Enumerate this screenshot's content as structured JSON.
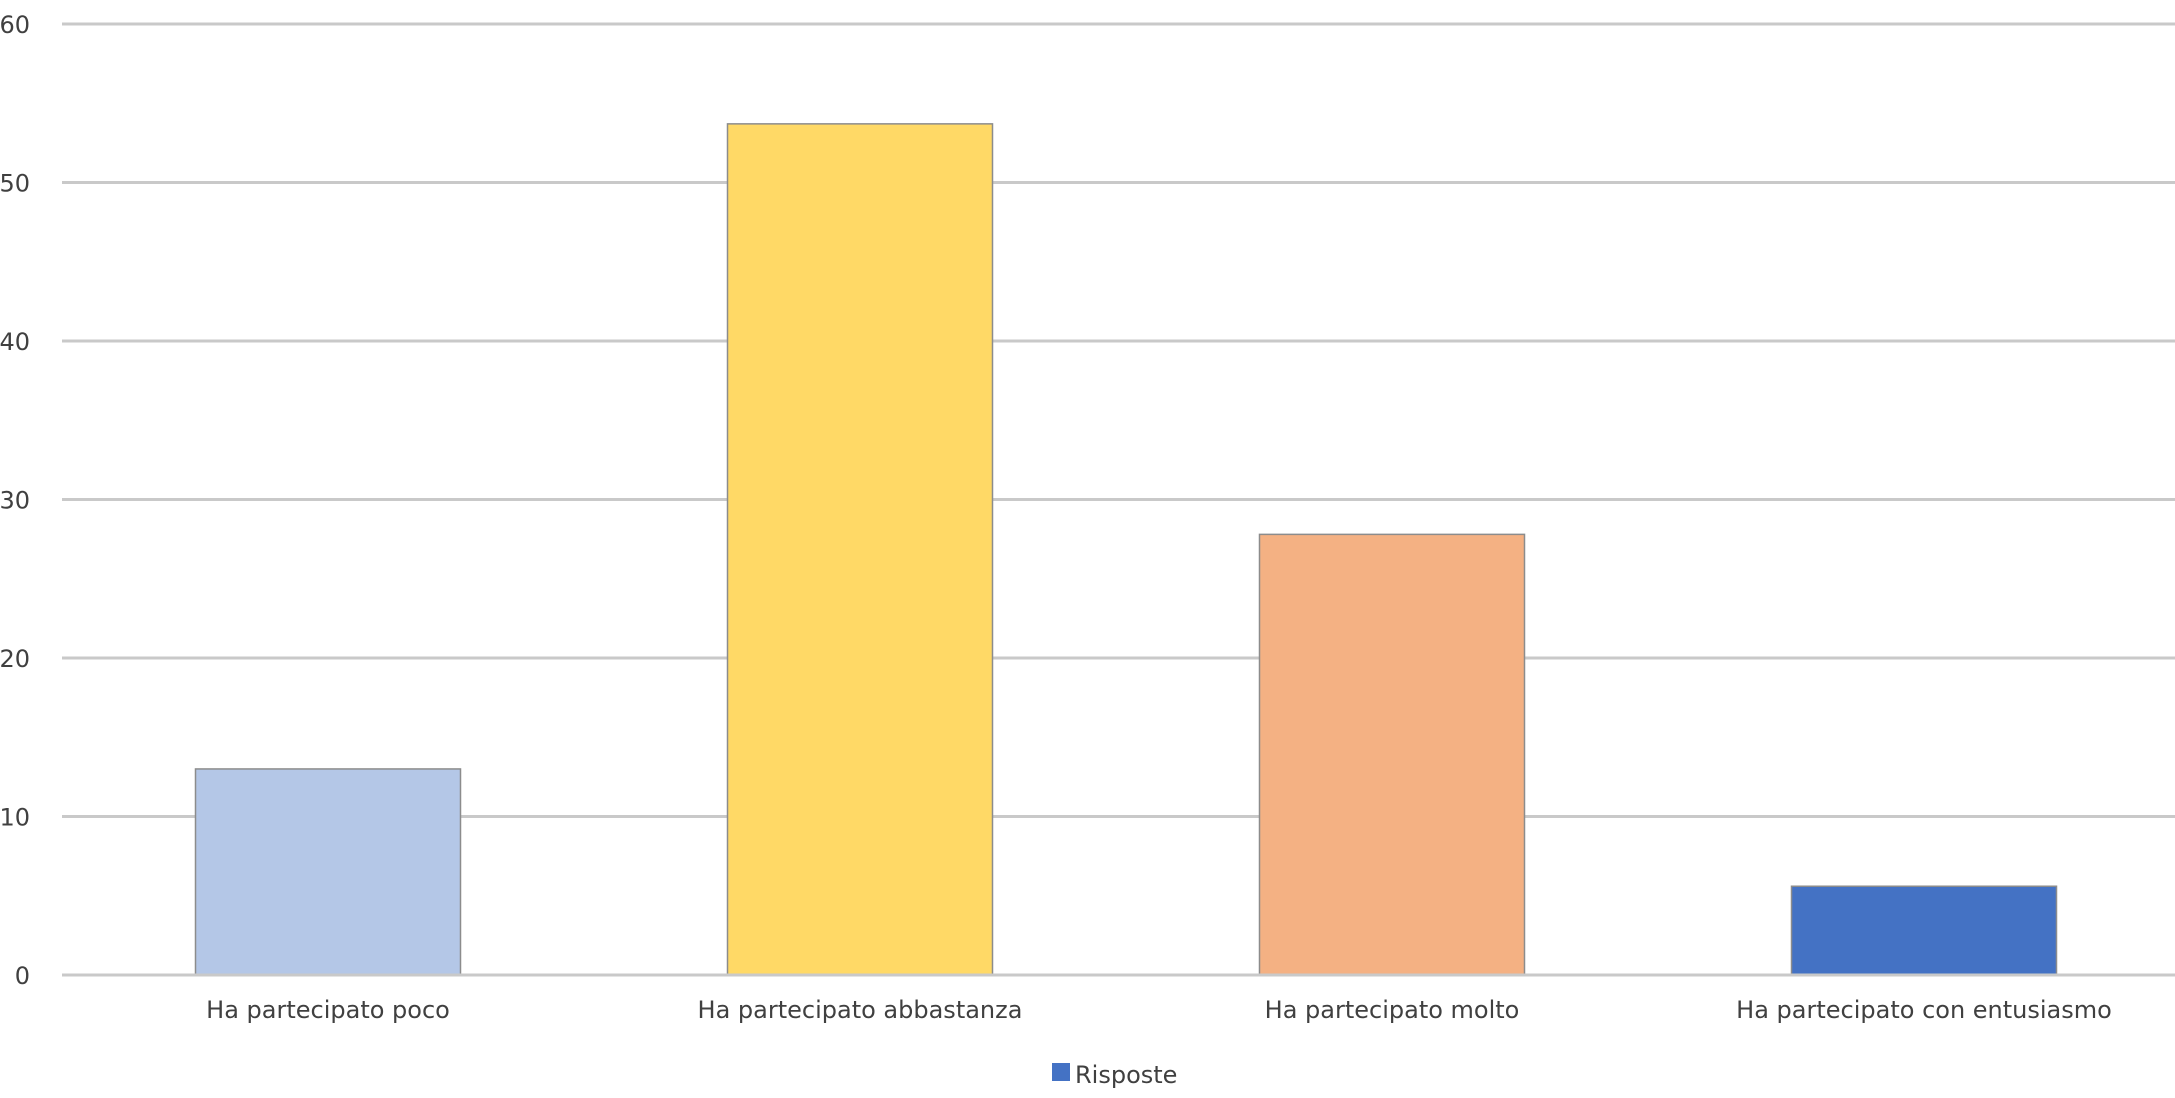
{
  "chart_data": {
    "type": "bar",
    "title": "",
    "xlabel": "",
    "ylabel": "",
    "categories": [
      "Ha partecipato poco",
      "Ha partecipato abbastanza",
      "Ha partecipato molto",
      "Ha partecipato con entusiasmo"
    ],
    "series": [
      {
        "name": "Risposte",
        "values": [
          13,
          53.7,
          27.8,
          5.6
        ],
        "colors": [
          "#b4c7e7",
          "#ffd966",
          "#f4b183",
          "#4472c4"
        ]
      }
    ],
    "ylim": [
      0,
      60
    ],
    "yticks": [
      0,
      10,
      20,
      30,
      40,
      50,
      60
    ],
    "grid": true,
    "legend": {
      "position": "bottom",
      "label": "Risposte",
      "color": "#4472c4"
    }
  }
}
